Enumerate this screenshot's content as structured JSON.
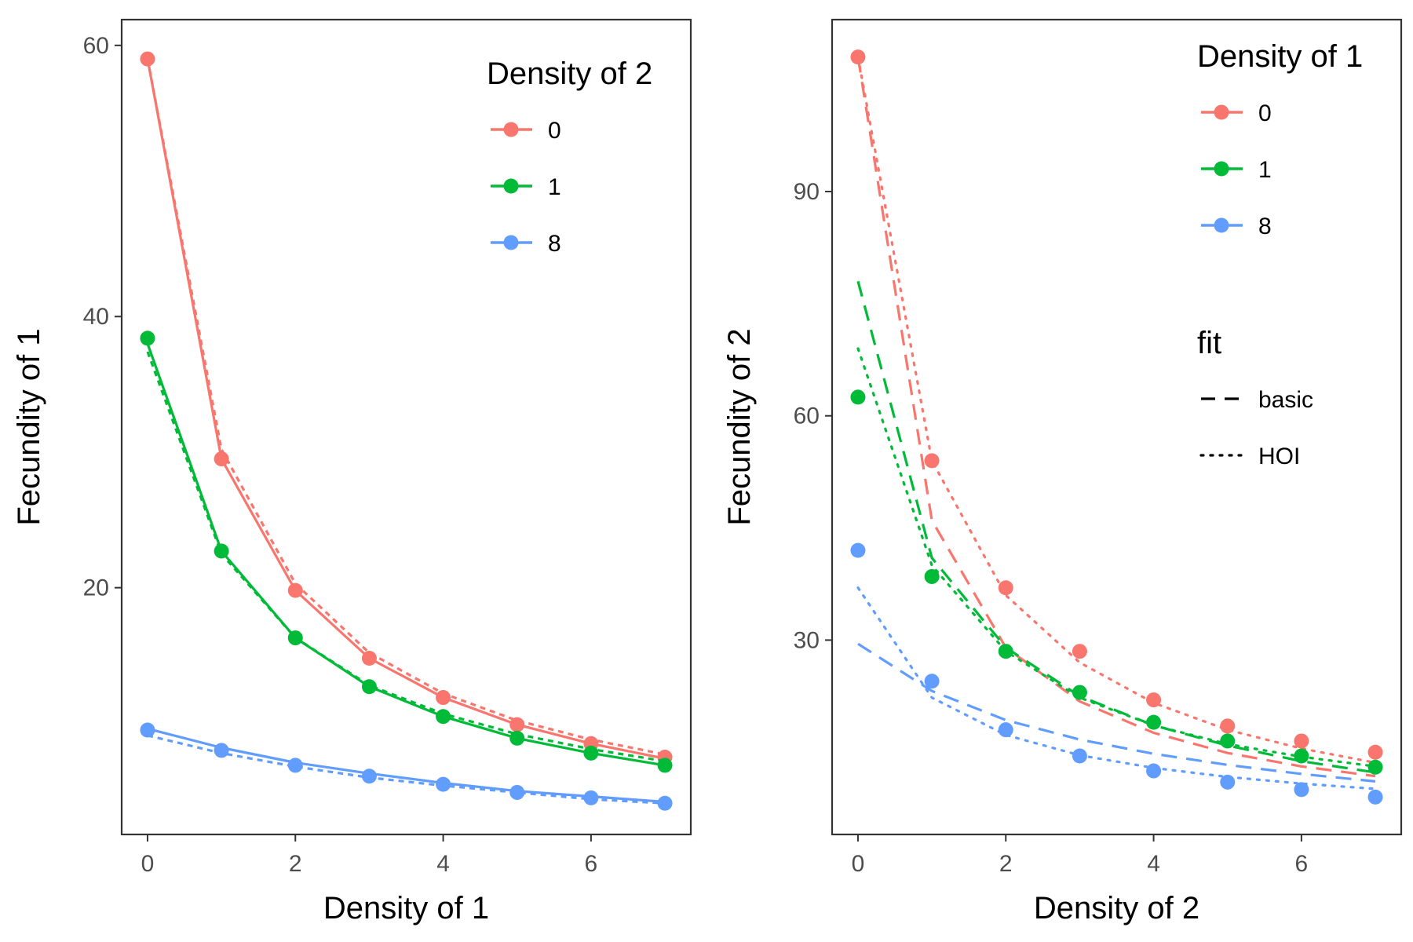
{
  "colors": {
    "0": "#F8766D",
    "1": "#00BA38",
    "8": "#619CFF"
  },
  "chart_data": [
    {
      "type": "line",
      "xlabel": "Density of 1",
      "ylabel": "Fecundity of 1",
      "xlim": [
        -0.35,
        7.35
      ],
      "ylim": [
        1.8,
        61.9
      ],
      "xticks": [
        0,
        2,
        4,
        6
      ],
      "yticks": [
        20,
        40,
        60
      ],
      "legend": {
        "title": "Density of 2",
        "entries": [
          "0",
          "1",
          "8"
        ],
        "placement": "top-right"
      },
      "x": [
        0,
        1,
        2,
        3,
        4,
        5,
        6,
        7
      ],
      "series": [
        {
          "name": "0",
          "color": "#F8766D",
          "points": [
            59.0,
            29.5,
            19.8,
            14.8,
            11.9,
            9.9,
            8.5,
            7.5
          ],
          "basic": [
            59.0,
            29.5,
            19.8,
            14.8,
            11.9,
            9.9,
            8.5,
            7.4
          ],
          "hoi": [
            59.0,
            30.2,
            20.3,
            15.2,
            12.2,
            10.2,
            8.8,
            7.7
          ]
        },
        {
          "name": "1",
          "color": "#00BA38",
          "points": [
            38.4,
            22.7,
            16.3,
            12.7,
            10.5,
            8.9,
            7.8,
            6.9
          ],
          "basic": [
            38.0,
            22.7,
            16.3,
            12.7,
            10.5,
            8.9,
            7.8,
            6.9
          ],
          "hoi": [
            37.4,
            22.5,
            16.3,
            12.8,
            10.7,
            9.2,
            8.1,
            7.2
          ]
        },
        {
          "name": "8",
          "color": "#619CFF",
          "points": [
            9.5,
            8.0,
            6.9,
            6.1,
            5.5,
            4.9,
            4.5,
            4.1
          ],
          "basic": [
            9.6,
            8.2,
            7.1,
            6.3,
            5.6,
            5.0,
            4.6,
            4.2
          ],
          "hoi": [
            9.1,
            7.8,
            6.8,
            6.0,
            5.4,
            4.9,
            4.4,
            4.1
          ]
        }
      ]
    },
    {
      "type": "line",
      "xlabel": "Density of 2",
      "ylabel": "Fecundity of 2",
      "xlim": [
        -0.35,
        7.35
      ],
      "ylim": [
        4,
        113
      ],
      "xticks": [
        0,
        2,
        4,
        6
      ],
      "yticks": [
        30,
        60,
        90
      ],
      "legend": {
        "title": "Density of 1",
        "entries": [
          "0",
          "1",
          "8"
        ],
        "placement": "top-right"
      },
      "fit_legend": {
        "title": "fit",
        "entries": [
          {
            "label": "basic",
            "style": "dashed"
          },
          {
            "label": "HOI",
            "style": "dotted"
          }
        ]
      },
      "x": [
        0,
        1,
        2,
        3,
        4,
        5,
        6,
        7
      ],
      "series": [
        {
          "name": "0",
          "color": "#F8766D",
          "points": [
            108,
            54,
            37,
            28.5,
            22,
            18.5,
            16.5,
            15
          ],
          "basic": [
            108,
            46,
            29,
            21.8,
            17.6,
            14.9,
            13.1,
            11.8
          ],
          "hoi": [
            108,
            54,
            36,
            27,
            21.6,
            18,
            15.5,
            13.6
          ]
        },
        {
          "name": "1",
          "color": "#00BA38",
          "points": [
            62.5,
            38.5,
            28.5,
            23,
            19,
            16.5,
            14.5,
            13
          ],
          "basic": [
            78,
            41,
            29,
            22.5,
            18.6,
            15.9,
            13.8,
            12.3
          ],
          "hoi": [
            69,
            40,
            28.5,
            22.3,
            18.6,
            16.1,
            14.4,
            13.1
          ]
        },
        {
          "name": "8",
          "color": "#619CFF",
          "points": [
            42,
            24.5,
            18,
            14.5,
            12.5,
            11,
            10,
            9
          ],
          "basic": [
            29.5,
            23.2,
            19.3,
            16.7,
            14.8,
            13.3,
            12.1,
            11.1
          ],
          "hoi": [
            37,
            22.3,
            17.3,
            14.6,
            12.9,
            11.7,
            10.8,
            10.1
          ]
        }
      ]
    }
  ]
}
